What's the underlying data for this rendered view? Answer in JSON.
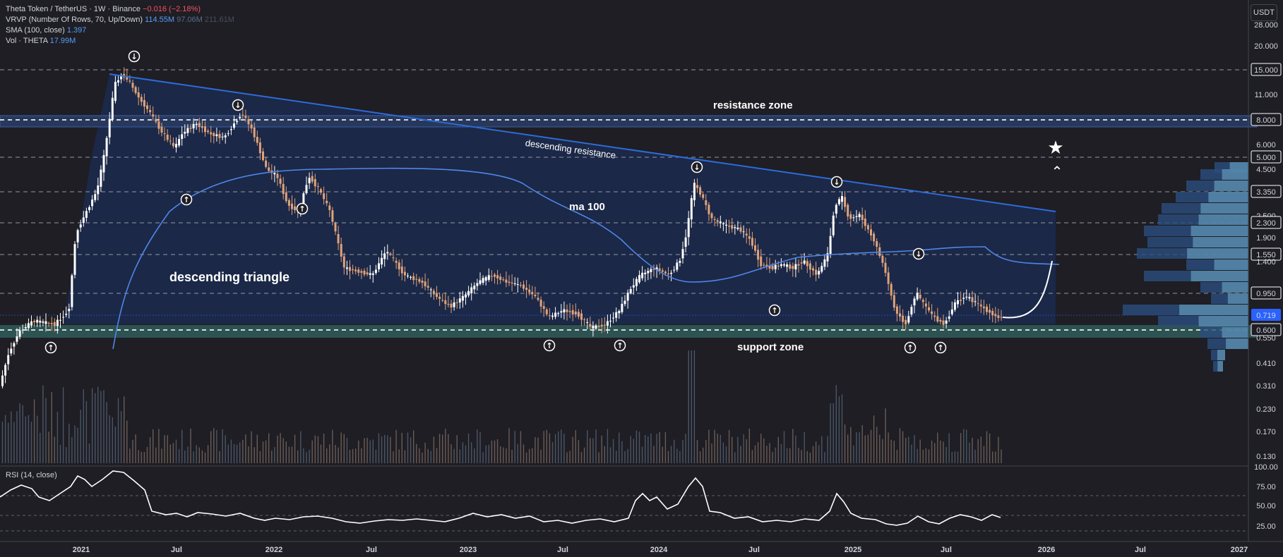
{
  "legend": {
    "symbol": "Theta Token / TetherUS · 1W · Binance",
    "change": "−0.016 (−2.18%)",
    "vrvp_label": "VRVP (Number Of Rows, 70, Up/Down)",
    "vrvp_v1": "114.55M",
    "vrvp_v2": "97.06M",
    "vrvp_v3": "211.61M",
    "sma_label": "SMA (100, close)",
    "sma_value": "1.397",
    "vol_label": "Vol · THETA",
    "vol_value": "17.99M",
    "rsi_label": "RSI (14, close)"
  },
  "currency_button": "USDT",
  "price_axis": {
    "ticks": [
      "28.000",
      "20.000",
      "15.000",
      "11.000",
      "8.000",
      "6.000",
      "5.000",
      "4.500",
      "3.350",
      "2.500",
      "2.300",
      "1.900",
      "1.550",
      "1.400",
      "0.950",
      "0.719",
      "0.600",
      "0.550",
      "0.410",
      "0.310",
      "0.230",
      "0.170",
      "0.130"
    ],
    "highlighted": [
      "15.000",
      "8.000",
      "5.000",
      "3.350",
      "2.300",
      "1.550",
      "0.950",
      "0.719",
      "0.600"
    ]
  },
  "rsi_axis": {
    "ticks": [
      "100.00",
      "75.00",
      "50.00",
      "25.00"
    ]
  },
  "time_axis": {
    "labels": [
      "2021",
      "Jul",
      "2022",
      "Jul",
      "2023",
      "Jul",
      "2024",
      "Jul",
      "2025",
      "Jul",
      "2026",
      "Jul",
      "2027"
    ]
  },
  "annotations": {
    "resistance_zone": "resistance zone",
    "descending_resistance": "descending resistance",
    "ma100": "ma 100",
    "descending_triangle": "descending triangle",
    "support_zone": "support zone"
  },
  "colors": {
    "background": "#1e1e24",
    "up": "#ffffff",
    "down": "#e0a27a",
    "trendline": "#2e6bd8",
    "sma": "#4f86e8",
    "zone": "#2d3f63",
    "support": "#3c6a70"
  }
}
